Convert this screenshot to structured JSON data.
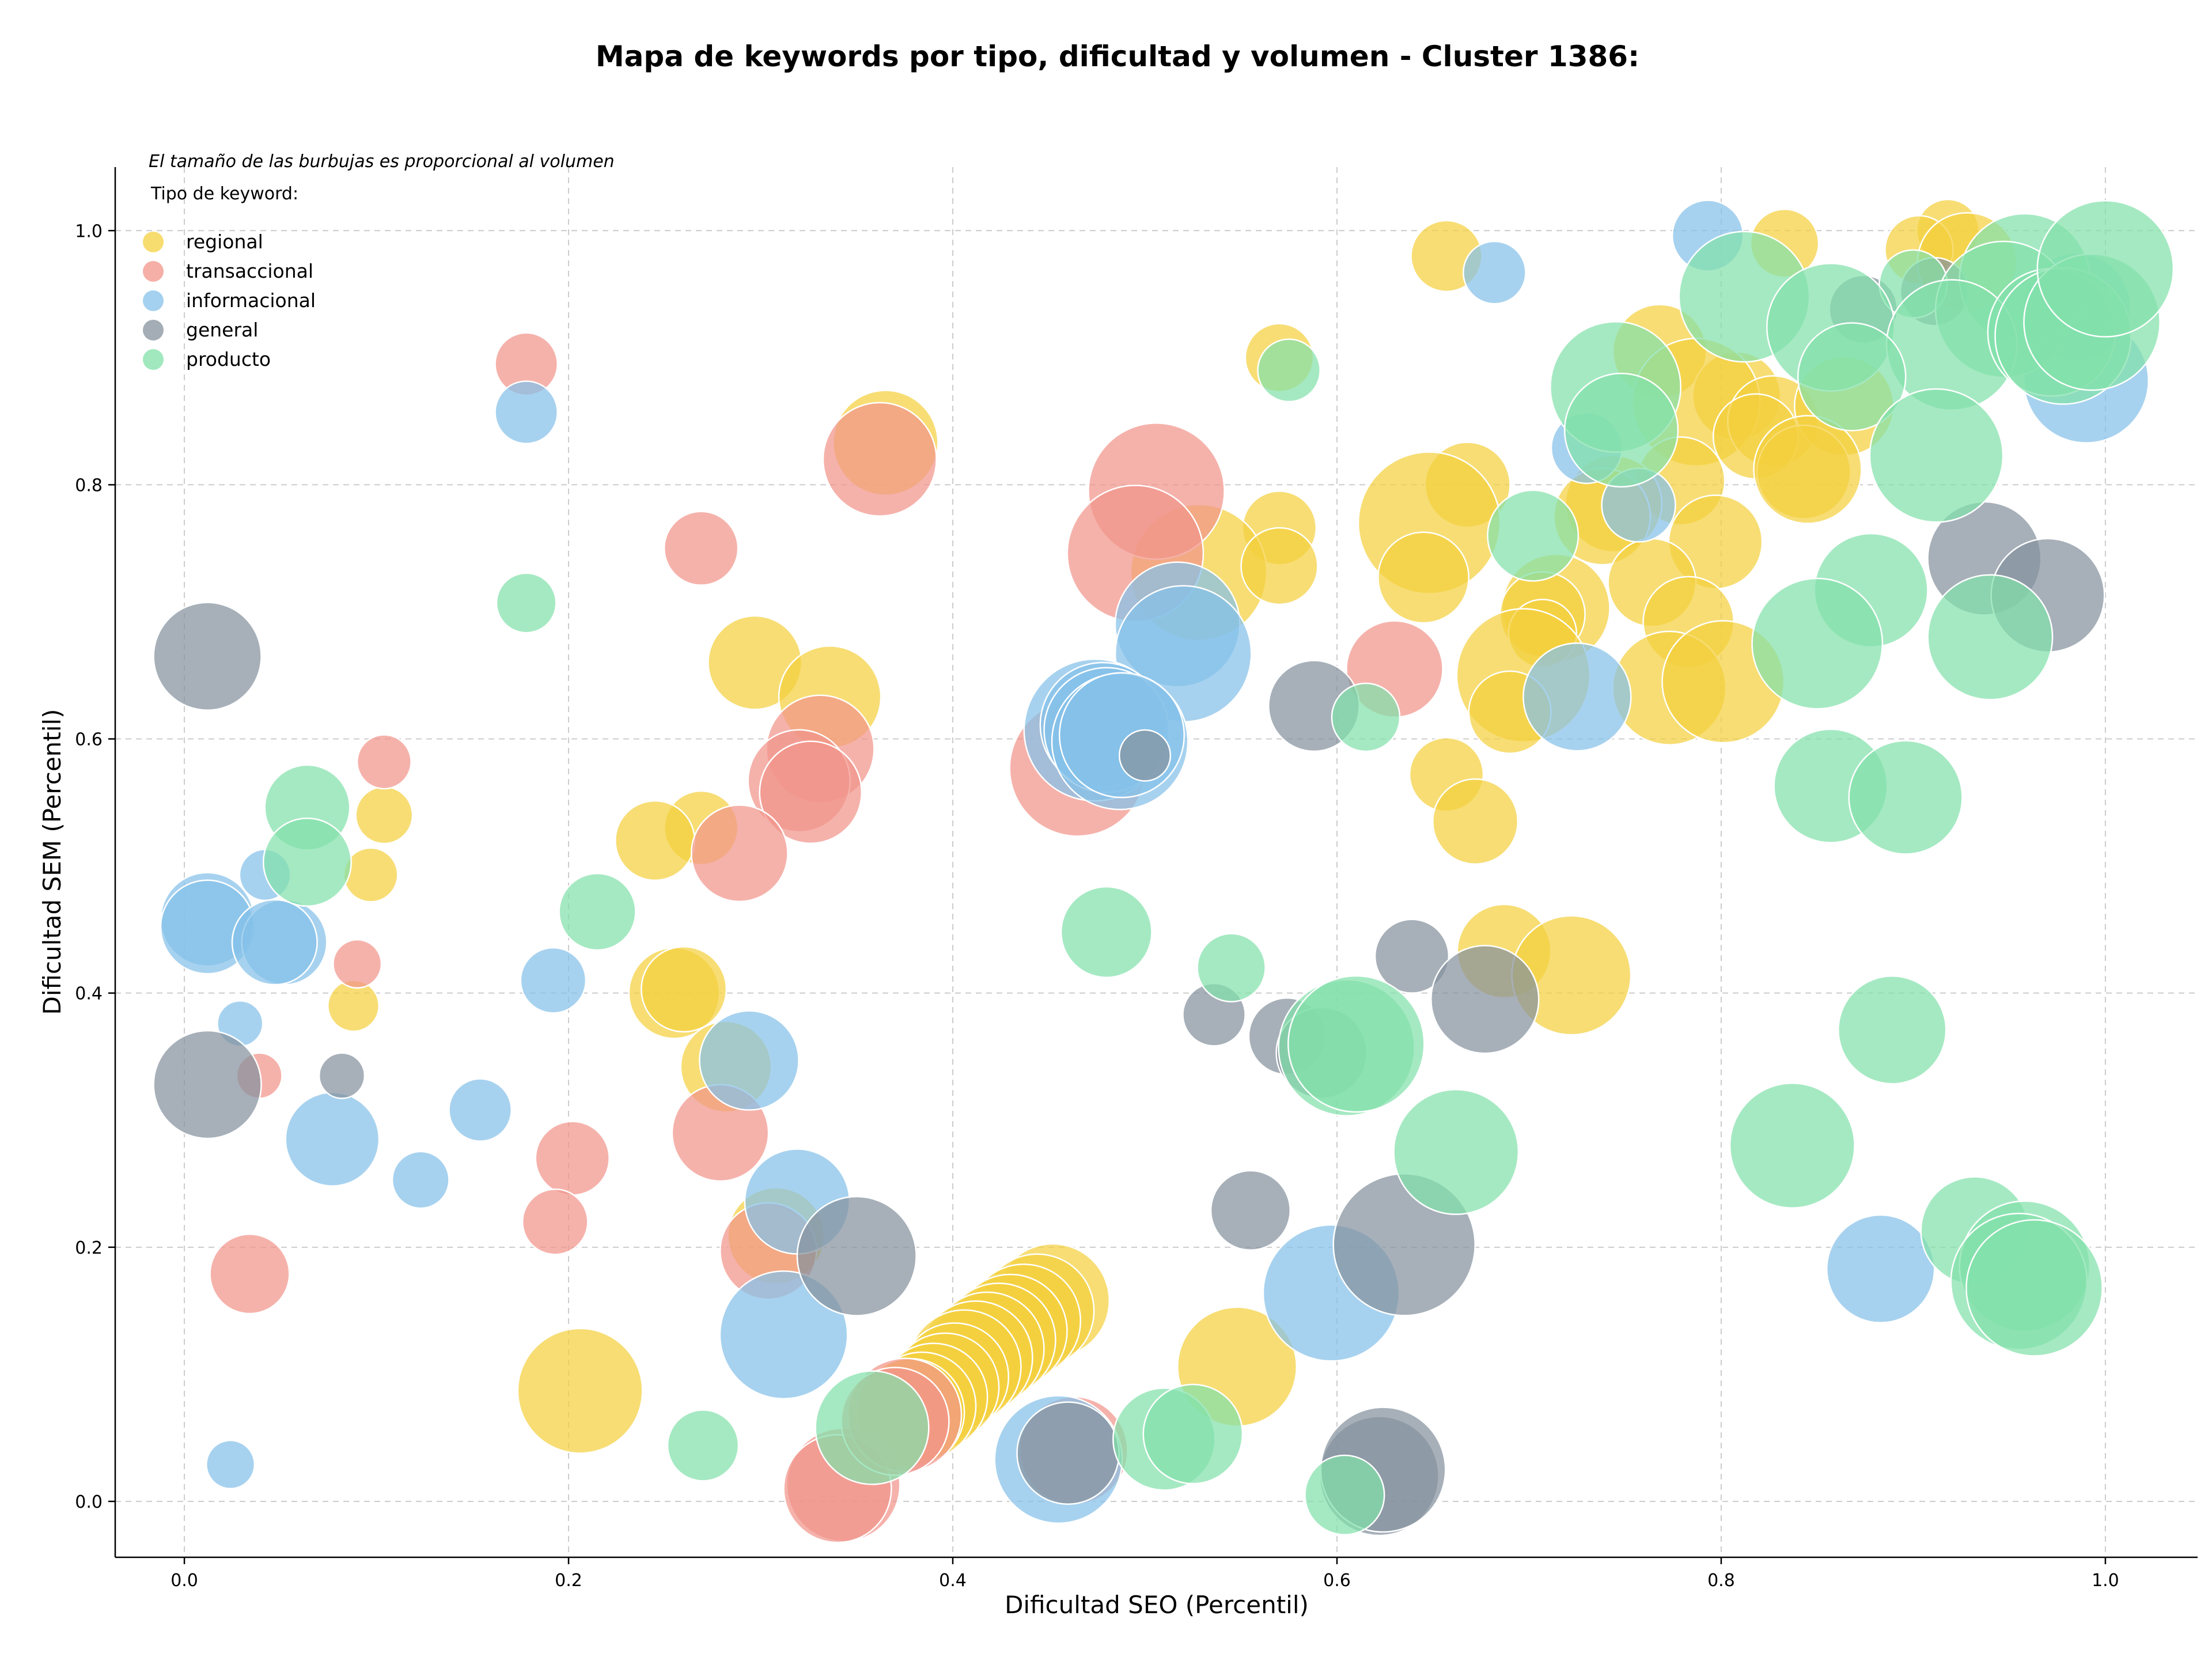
{
  "chart_data": {
    "type": "scatter",
    "title": "Mapa de keywords por tipo, dificultad y volumen - Cluster 1386:",
    "xlabel": "Dificultad SEO (Percentil)",
    "ylabel": "Dificultad SEM (Percentil)",
    "xlim": [
      -0.036,
      1.048
    ],
    "ylim": [
      -0.044,
      1.05
    ],
    "xticks": [
      "0.0",
      "0.2",
      "0.4",
      "0.6",
      "0.8",
      "1.0"
    ],
    "yticks": [
      "0.0",
      "0.2",
      "0.4",
      "0.6",
      "0.8",
      "1.0"
    ],
    "grid": true,
    "note": "El tamaño de las burbujas es proporcional al volumen",
    "legend": {
      "title": "Tipo de keyword:",
      "placement": "top-left"
    },
    "series": [
      {
        "name": "regional",
        "color": "#F4D03F",
        "points": [
          [
            0.657,
            0.98,
            25
          ],
          [
            0.833,
            0.99,
            24
          ],
          [
            0.918,
            1.0,
            22
          ],
          [
            0.903,
            0.985,
            24
          ],
          [
            0.928,
            0.975,
            35
          ],
          [
            0.57,
            0.9,
            24
          ],
          [
            0.768,
            0.905,
            33
          ],
          [
            0.808,
            0.87,
            31
          ],
          [
            0.787,
            0.865,
            45
          ],
          [
            0.827,
            0.85,
            32
          ],
          [
            0.818,
            0.838,
            30
          ],
          [
            0.864,
            0.862,
            35
          ],
          [
            0.843,
            0.81,
            33
          ],
          [
            0.845,
            0.812,
            38
          ],
          [
            0.365,
            0.833,
            37
          ],
          [
            0.668,
            0.8,
            30
          ],
          [
            0.779,
            0.803,
            31
          ],
          [
            0.744,
            0.785,
            34
          ],
          [
            0.738,
            0.775,
            34
          ],
          [
            0.648,
            0.77,
            50
          ],
          [
            0.57,
            0.766,
            26
          ],
          [
            0.797,
            0.755,
            33
          ],
          [
            0.528,
            0.731,
            48
          ],
          [
            0.57,
            0.736,
            27
          ],
          [
            0.645,
            0.727,
            32
          ],
          [
            0.764,
            0.723,
            31
          ],
          [
            0.714,
            0.703,
            38
          ],
          [
            0.707,
            0.698,
            30
          ],
          [
            0.707,
            0.683,
            24
          ],
          [
            0.783,
            0.692,
            32
          ],
          [
            0.297,
            0.66,
            33
          ],
          [
            0.336,
            0.633,
            36
          ],
          [
            0.697,
            0.65,
            47
          ],
          [
            0.773,
            0.64,
            40
          ],
          [
            0.801,
            0.645,
            43
          ],
          [
            0.69,
            0.621,
            29
          ],
          [
            0.657,
            0.572,
            26
          ],
          [
            0.672,
            0.535,
            30
          ],
          [
            0.269,
            0.53,
            26
          ],
          [
            0.245,
            0.52,
            28
          ],
          [
            0.104,
            0.54,
            20
          ],
          [
            0.097,
            0.493,
            19
          ],
          [
            0.088,
            0.39,
            18
          ],
          [
            0.687,
            0.433,
            33
          ],
          [
            0.722,
            0.414,
            42
          ],
          [
            0.255,
            0.4,
            32
          ],
          [
            0.26,
            0.403,
            30
          ],
          [
            0.282,
            0.342,
            32
          ],
          [
            0.308,
            0.209,
            34
          ],
          [
            0.452,
            0.158,
            40
          ],
          [
            0.444,
            0.15,
            40
          ],
          [
            0.437,
            0.142,
            40
          ],
          [
            0.43,
            0.134,
            40
          ],
          [
            0.424,
            0.127,
            40
          ],
          [
            0.418,
            0.12,
            40
          ],
          [
            0.412,
            0.113,
            40
          ],
          [
            0.406,
            0.106,
            40
          ],
          [
            0.401,
            0.098,
            38
          ],
          [
            0.396,
            0.09,
            38
          ],
          [
            0.39,
            0.082,
            38
          ],
          [
            0.384,
            0.075,
            38
          ],
          [
            0.378,
            0.07,
            38
          ],
          [
            0.548,
            0.106,
            42
          ],
          [
            0.206,
            0.087,
            44
          ]
        ]
      },
      {
        "name": "transaccional",
        "color": "#F1948A",
        "points": [
          [
            0.178,
            0.895,
            22
          ],
          [
            0.362,
            0.82,
            40
          ],
          [
            0.269,
            0.75,
            26
          ],
          [
            0.506,
            0.795,
            48
          ],
          [
            0.495,
            0.746,
            48
          ],
          [
            0.63,
            0.655,
            34
          ],
          [
            0.104,
            0.582,
            19
          ],
          [
            0.331,
            0.592,
            38
          ],
          [
            0.32,
            0.567,
            36
          ],
          [
            0.326,
            0.558,
            36
          ],
          [
            0.465,
            0.577,
            48
          ],
          [
            0.289,
            0.51,
            34
          ],
          [
            0.09,
            0.423,
            17
          ],
          [
            0.039,
            0.335,
            16
          ],
          [
            0.279,
            0.29,
            34
          ],
          [
            0.202,
            0.27,
            26
          ],
          [
            0.193,
            0.22,
            23
          ],
          [
            0.304,
            0.197,
            34
          ],
          [
            0.034,
            0.179,
            28
          ],
          [
            0.463,
            0.04,
            38
          ],
          [
            0.343,
            0.013,
            40
          ],
          [
            0.34,
            0.01,
            38
          ],
          [
            0.375,
            0.068,
            40
          ],
          [
            0.37,
            0.063,
            38
          ]
        ]
      },
      {
        "name": "informacional",
        "color": "#85C1E9",
        "points": [
          [
            0.793,
            0.996,
            25
          ],
          [
            0.682,
            0.967,
            22
          ],
          [
            0.985,
            0.94,
            38
          ],
          [
            0.99,
            0.882,
            44
          ],
          [
            0.73,
            0.829,
            25
          ],
          [
            0.757,
            0.784,
            26
          ],
          [
            0.178,
            0.857,
            22
          ],
          [
            0.517,
            0.69,
            44
          ],
          [
            0.52,
            0.667,
            48
          ],
          [
            0.725,
            0.633,
            38
          ],
          [
            0.474,
            0.607,
            50
          ],
          [
            0.478,
            0.611,
            44
          ],
          [
            0.48,
            0.607,
            44
          ],
          [
            0.487,
            0.598,
            48
          ],
          [
            0.488,
            0.603,
            44
          ],
          [
            0.042,
            0.493,
            18
          ],
          [
            0.012,
            0.458,
            33
          ],
          [
            0.012,
            0.452,
            33
          ],
          [
            0.052,
            0.44,
            30
          ],
          [
            0.047,
            0.44,
            30
          ],
          [
            0.192,
            0.41,
            23
          ],
          [
            0.029,
            0.376,
            16
          ],
          [
            0.294,
            0.347,
            35
          ],
          [
            0.154,
            0.308,
            22
          ],
          [
            0.077,
            0.285,
            33
          ],
          [
            0.123,
            0.253,
            20
          ],
          [
            0.319,
            0.236,
            37
          ],
          [
            0.883,
            0.183,
            38
          ],
          [
            0.312,
            0.131,
            45
          ],
          [
            0.597,
            0.164,
            48
          ],
          [
            0.455,
            0.033,
            45
          ],
          [
            0.024,
            0.029,
            17
          ]
        ]
      },
      {
        "name": "general",
        "color": "#85929E",
        "points": [
          [
            0.874,
            0.938,
            24
          ],
          [
            0.911,
            0.952,
            24
          ],
          [
            0.012,
            0.665,
            38
          ],
          [
            0.937,
            0.742,
            40
          ],
          [
            0.97,
            0.713,
            40
          ],
          [
            0.588,
            0.626,
            32
          ],
          [
            0.5,
            0.587,
            18
          ],
          [
            0.639,
            0.429,
            26
          ],
          [
            0.677,
            0.395,
            38
          ],
          [
            0.536,
            0.383,
            22
          ],
          [
            0.574,
            0.366,
            27
          ],
          [
            0.592,
            0.353,
            32
          ],
          [
            0.012,
            0.328,
            38
          ],
          [
            0.082,
            0.335,
            16
          ],
          [
            0.35,
            0.193,
            42
          ],
          [
            0.555,
            0.229,
            28
          ],
          [
            0.635,
            0.202,
            50
          ],
          [
            0.622,
            0.02,
            42
          ],
          [
            0.624,
            0.025,
            44
          ],
          [
            0.46,
            0.038,
            36
          ]
        ]
      },
      {
        "name": "producto",
        "color": "#82E0AA",
        "points": [
          [
            0.9,
            0.958,
            24
          ],
          [
            0.812,
            0.948,
            46
          ],
          [
            0.857,
            0.924,
            45
          ],
          [
            0.958,
            0.962,
            46
          ],
          [
            0.947,
            0.938,
            48
          ],
          [
            0.92,
            0.91,
            46
          ],
          [
            0.972,
            0.92,
            45
          ],
          [
            0.978,
            0.917,
            48
          ],
          [
            0.993,
            0.928,
            48
          ],
          [
            1.0,
            0.97,
            48
          ],
          [
            0.575,
            0.89,
            22
          ],
          [
            0.745,
            0.877,
            46
          ],
          [
            0.748,
            0.843,
            40
          ],
          [
            0.868,
            0.885,
            38
          ],
          [
            0.912,
            0.823,
            47
          ],
          [
            0.702,
            0.76,
            32
          ],
          [
            0.878,
            0.717,
            40
          ],
          [
            0.85,
            0.675,
            46
          ],
          [
            0.94,
            0.68,
            44
          ],
          [
            0.615,
            0.617,
            24
          ],
          [
            0.178,
            0.707,
            21
          ],
          [
            0.064,
            0.546,
            30
          ],
          [
            0.064,
            0.503,
            31
          ],
          [
            0.857,
            0.563,
            40
          ],
          [
            0.896,
            0.554,
            40
          ],
          [
            0.215,
            0.464,
            27
          ],
          [
            0.48,
            0.448,
            32
          ],
          [
            0.545,
            0.42,
            24
          ],
          [
            0.605,
            0.357,
            48
          ],
          [
            0.61,
            0.36,
            48
          ],
          [
            0.889,
            0.371,
            38
          ],
          [
            0.662,
            0.275,
            44
          ],
          [
            0.837,
            0.28,
            44
          ],
          [
            0.932,
            0.213,
            38
          ],
          [
            0.958,
            0.185,
            46
          ],
          [
            0.955,
            0.173,
            48
          ],
          [
            0.963,
            0.168,
            48
          ],
          [
            0.358,
            0.058,
            40
          ],
          [
            0.51,
            0.049,
            36
          ],
          [
            0.525,
            0.053,
            35
          ],
          [
            0.27,
            0.044,
            25
          ],
          [
            0.604,
            0.005,
            28
          ]
        ]
      }
    ]
  }
}
